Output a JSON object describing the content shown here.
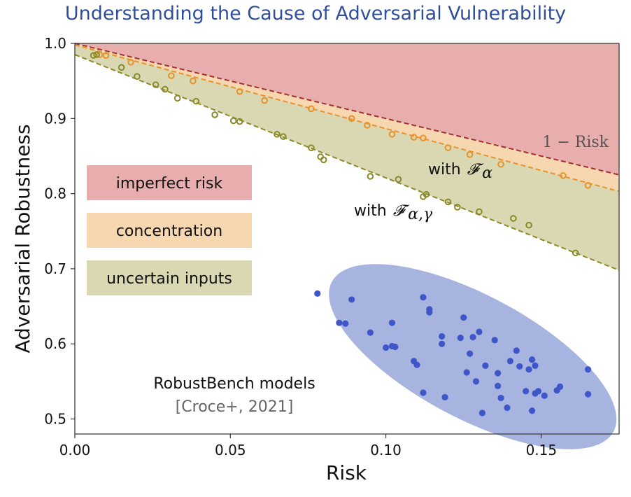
{
  "chart_data": {
    "type": "scatter",
    "title": "Understanding the Cause of Adversarial Vulnerability",
    "xlabel": "Risk",
    "ylabel": "Adversarial Robustness",
    "xlim": [
      0.0,
      0.175
    ],
    "ylim": [
      0.48,
      1.0
    ],
    "xticks": [
      "0.00",
      "0.05",
      "0.10",
      "0.15"
    ],
    "xtick_values": [
      0.0,
      0.05,
      0.1,
      0.15
    ],
    "yticks": [
      "0.5",
      "0.6",
      "0.7",
      "0.8",
      "0.9",
      "1.0"
    ],
    "ytick_values": [
      0.5,
      0.6,
      0.7,
      0.8,
      0.9,
      1.0
    ],
    "grid": false,
    "colors": {
      "imperfect_risk": "#e8adad",
      "concentration": "#f6d7b0",
      "uncertain_inputs": "#d9d8b2",
      "risk_line": "#a33030",
      "orange": "#e8922b",
      "olive": "#8a8a2a",
      "robustbench_ellipse": "#a8b4e0",
      "robustbench_dots": "#3e56c8",
      "title": "#2f4f9a"
    },
    "lines": {
      "one_minus_risk": {
        "label": "1 − Risk",
        "x": [
          0.0,
          0.175
        ],
        "y": [
          1.0,
          0.825
        ]
      },
      "f_alpha": {
        "label": "with 𝓕α",
        "x": [
          0.0,
          0.175
        ],
        "y": [
          0.998,
          0.803
        ]
      },
      "f_alpha_gamma": {
        "label": "with 𝓕α,γ",
        "x": [
          0.0,
          0.175
        ],
        "y": [
          0.985,
          0.698
        ]
      }
    },
    "series": [
      {
        "name": "with 𝓕α",
        "points": [
          [
            0.008,
            0.985
          ],
          [
            0.01,
            0.984
          ],
          [
            0.018,
            0.975
          ],
          [
            0.031,
            0.957
          ],
          [
            0.038,
            0.95
          ],
          [
            0.053,
            0.936
          ],
          [
            0.061,
            0.924
          ],
          [
            0.076,
            0.913
          ],
          [
            0.089,
            0.9
          ],
          [
            0.094,
            0.891
          ],
          [
            0.102,
            0.879
          ],
          [
            0.109,
            0.875
          ],
          [
            0.112,
            0.874
          ],
          [
            0.12,
            0.861
          ],
          [
            0.127,
            0.852
          ],
          [
            0.137,
            0.839
          ],
          [
            0.157,
            0.824
          ],
          [
            0.165,
            0.811
          ]
        ]
      },
      {
        "name": "with 𝓕α,γ",
        "points": [
          [
            0.006,
            0.984
          ],
          [
            0.007,
            0.985
          ],
          [
            0.015,
            0.968
          ],
          [
            0.02,
            0.956
          ],
          [
            0.026,
            0.945
          ],
          [
            0.029,
            0.939
          ],
          [
            0.033,
            0.927
          ],
          [
            0.039,
            0.923
          ],
          [
            0.045,
            0.905
          ],
          [
            0.051,
            0.897
          ],
          [
            0.053,
            0.896
          ],
          [
            0.065,
            0.879
          ],
          [
            0.067,
            0.876
          ],
          [
            0.076,
            0.861
          ],
          [
            0.079,
            0.849
          ],
          [
            0.08,
            0.845
          ],
          [
            0.095,
            0.823
          ],
          [
            0.104,
            0.819
          ],
          [
            0.112,
            0.796
          ],
          [
            0.113,
            0.799
          ],
          [
            0.12,
            0.789
          ],
          [
            0.123,
            0.782
          ],
          [
            0.13,
            0.776
          ],
          [
            0.141,
            0.767
          ],
          [
            0.146,
            0.758
          ],
          [
            0.161,
            0.721
          ]
        ]
      },
      {
        "name": "RobustBench models",
        "points": [
          [
            0.078,
            0.667
          ],
          [
            0.085,
            0.628
          ],
          [
            0.087,
            0.627
          ],
          [
            0.089,
            0.659
          ],
          [
            0.095,
            0.615
          ],
          [
            0.1,
            0.595
          ],
          [
            0.102,
            0.597
          ],
          [
            0.102,
            0.628
          ],
          [
            0.103,
            0.596
          ],
          [
            0.109,
            0.577
          ],
          [
            0.11,
            0.572
          ],
          [
            0.112,
            0.662
          ],
          [
            0.112,
            0.535
          ],
          [
            0.114,
            0.642
          ],
          [
            0.114,
            0.646
          ],
          [
            0.118,
            0.6
          ],
          [
            0.118,
            0.61
          ],
          [
            0.119,
            0.529
          ],
          [
            0.124,
            0.608
          ],
          [
            0.125,
            0.635
          ],
          [
            0.126,
            0.562
          ],
          [
            0.127,
            0.587
          ],
          [
            0.128,
            0.609
          ],
          [
            0.129,
            0.55
          ],
          [
            0.13,
            0.616
          ],
          [
            0.131,
            0.508
          ],
          [
            0.132,
            0.571
          ],
          [
            0.135,
            0.605
          ],
          [
            0.136,
            0.544
          ],
          [
            0.136,
            0.561
          ],
          [
            0.137,
            0.528
          ],
          [
            0.139,
            0.515
          ],
          [
            0.14,
            0.577
          ],
          [
            0.142,
            0.591
          ],
          [
            0.143,
            0.57
          ],
          [
            0.145,
            0.537
          ],
          [
            0.146,
            0.566
          ],
          [
            0.147,
            0.511
          ],
          [
            0.147,
            0.579
          ],
          [
            0.148,
            0.534
          ],
          [
            0.148,
            0.571
          ],
          [
            0.149,
            0.537
          ],
          [
            0.151,
            0.531
          ],
          [
            0.155,
            0.538
          ],
          [
            0.156,
            0.543
          ],
          [
            0.165,
            0.533
          ],
          [
            0.165,
            0.566
          ]
        ]
      }
    ],
    "legend": [
      {
        "label": "imperfect risk",
        "color": "#e8adad"
      },
      {
        "label": "concentration",
        "color": "#f6d7b0"
      },
      {
        "label": "uncertain inputs",
        "color": "#d9d8b2"
      }
    ],
    "annotations": {
      "risk_line_label": "1 − Risk",
      "f_alpha_with": "with",
      "f_alpha_symbol": "𝓕",
      "f_alpha_sub": "α",
      "f_alpha_gamma_with": "with",
      "f_alpha_gamma_symbol": "𝓕",
      "f_alpha_gamma_sub": "α,γ",
      "robustbench_label": "RobustBench models",
      "robustbench_cite": "[Croce+, 2021]"
    }
  }
}
